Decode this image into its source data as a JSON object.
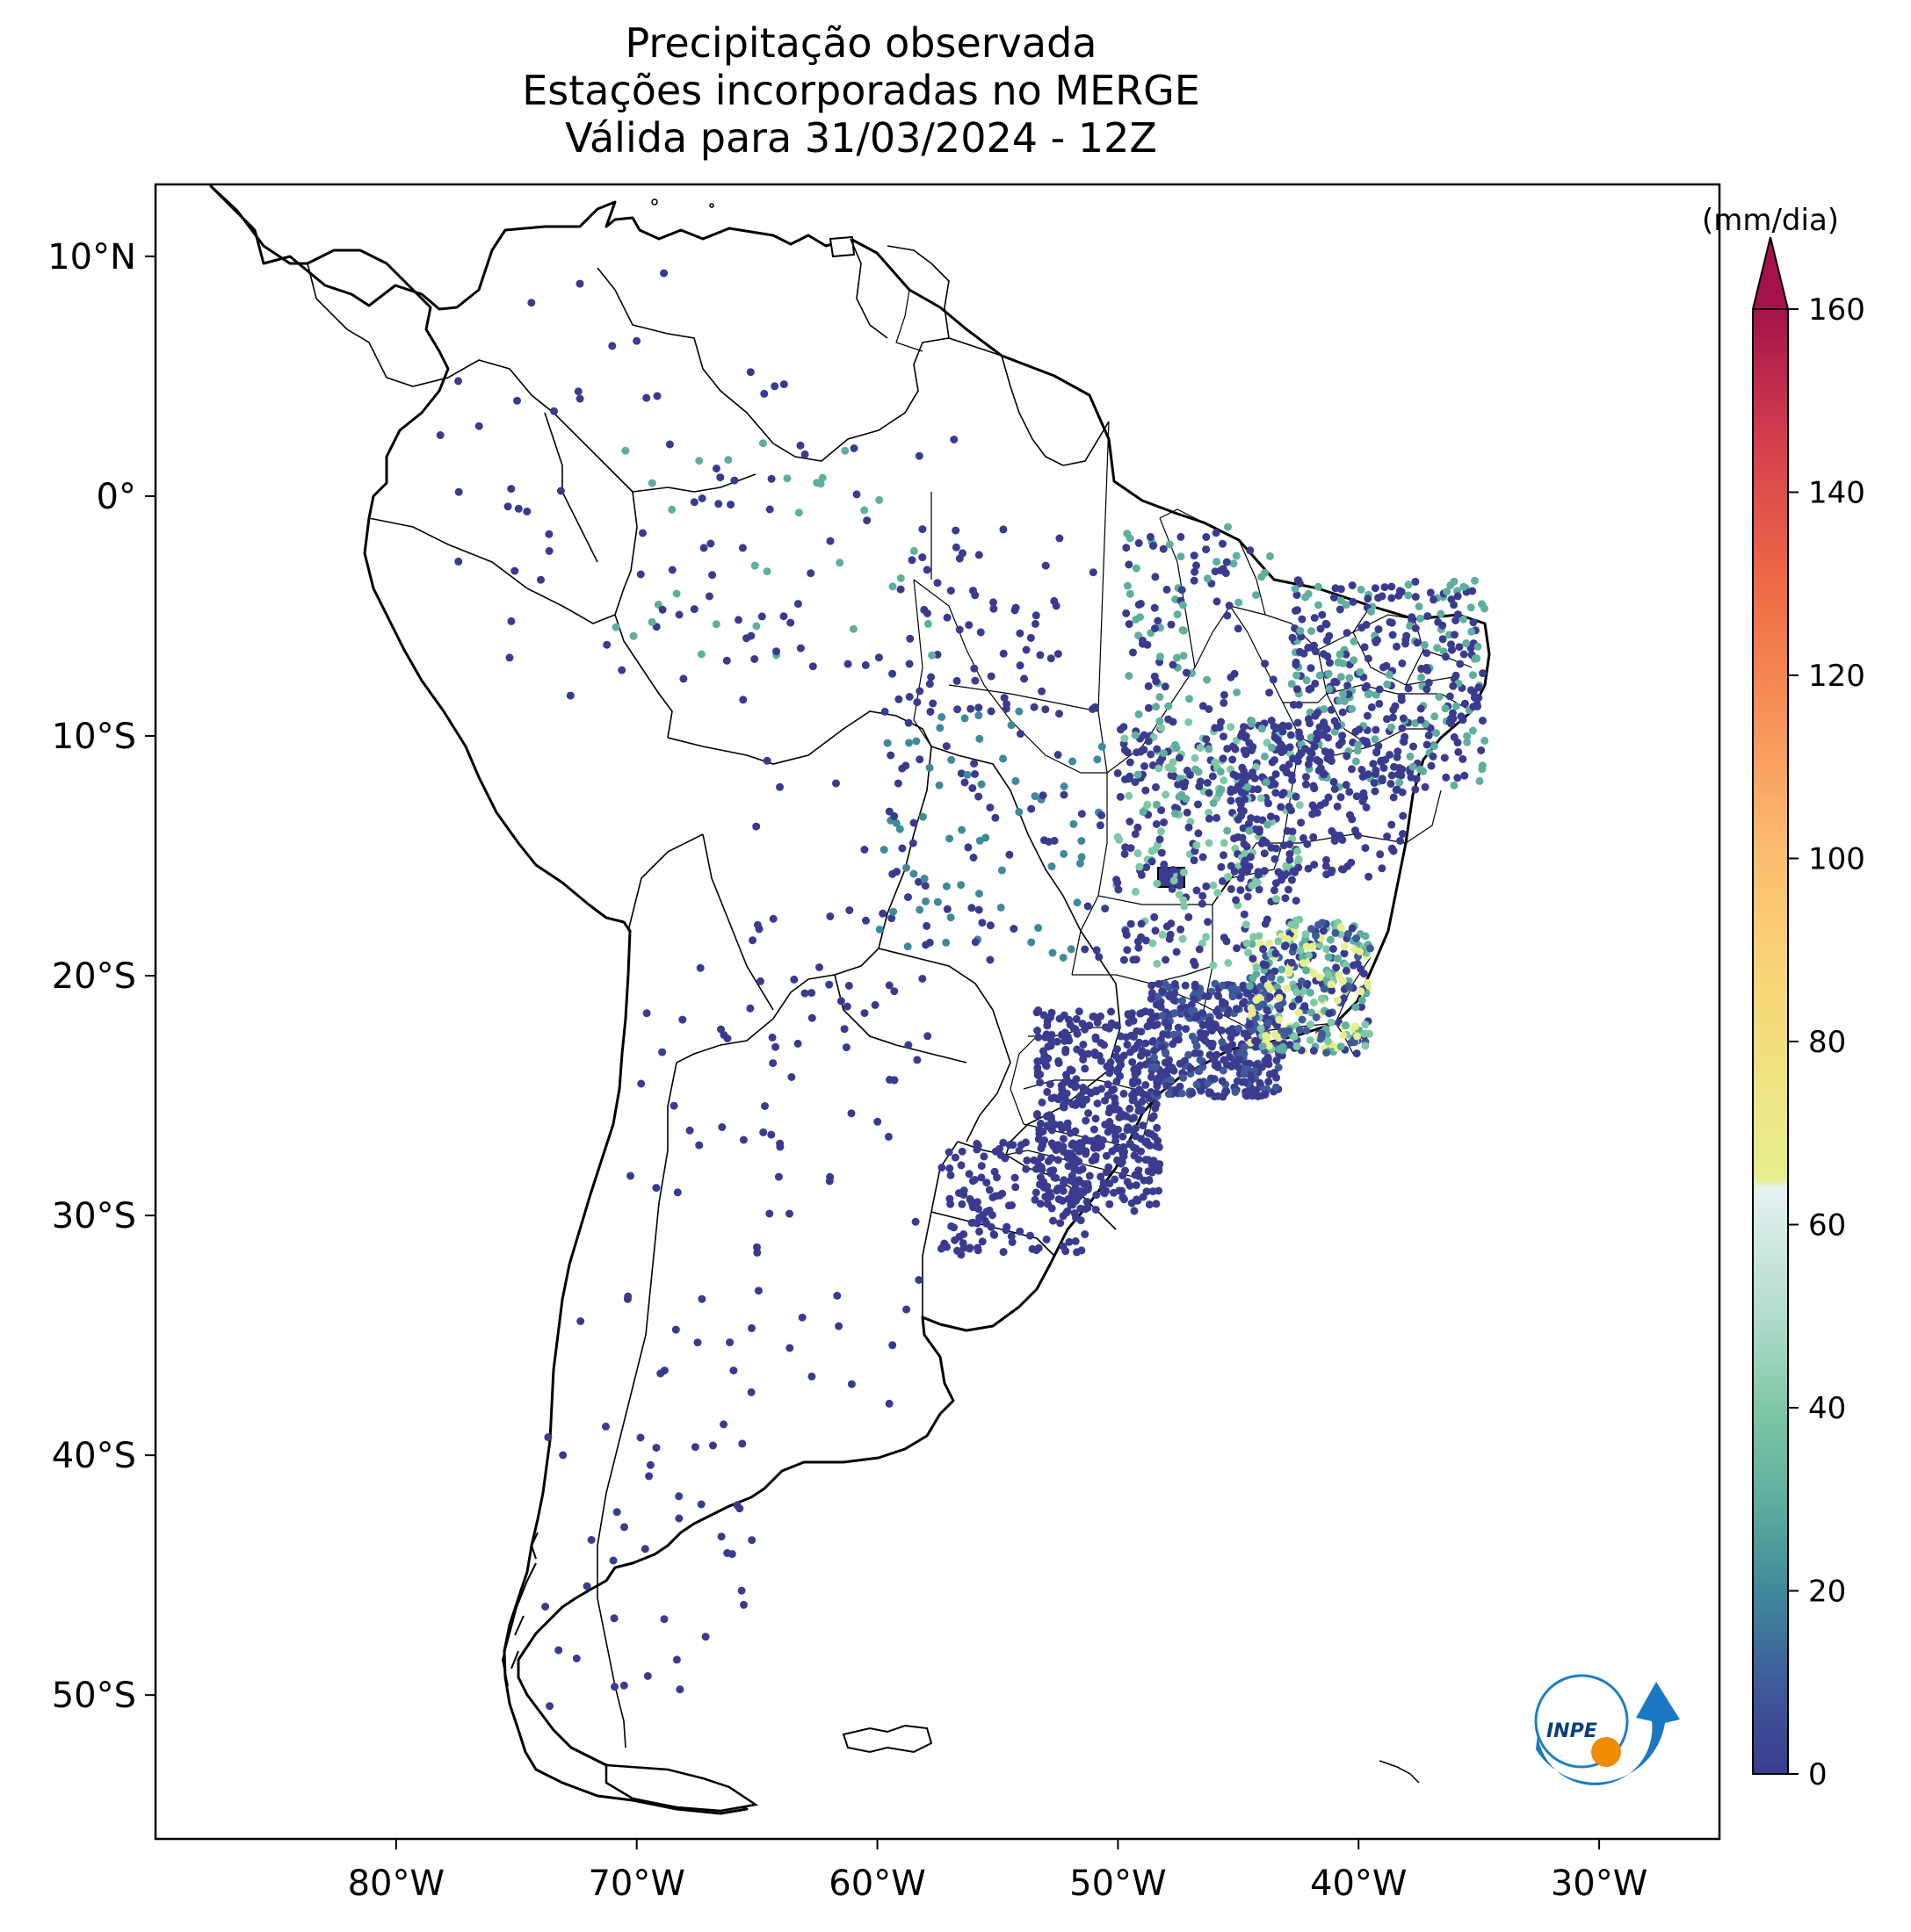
{
  "map": {
    "title_lines": [
      "Precipitação observada",
      "Estações incorporadas no MERGE",
      "Válida para 31/03/2024 - 12Z"
    ],
    "x_ticks": [
      {
        "label": "80°W",
        "lon": -80
      },
      {
        "label": "70°W",
        "lon": -70
      },
      {
        "label": "60°W",
        "lon": -60
      },
      {
        "label": "50°W",
        "lon": -50
      },
      {
        "label": "40°W",
        "lon": -40
      },
      {
        "label": "30°W",
        "lon": -30
      }
    ],
    "y_ticks": [
      {
        "label": "10°N",
        "lat": 10
      },
      {
        "label": "0°",
        "lat": 0
      },
      {
        "label": "10°S",
        "lat": -10
      },
      {
        "label": "20°S",
        "lat": -20
      },
      {
        "label": "30°S",
        "lat": -30
      },
      {
        "label": "40°S",
        "lat": -40
      },
      {
        "label": "50°S",
        "lat": -50
      }
    ],
    "extent": {
      "lon_min": -90,
      "lon_max": -25,
      "lat_min": -56,
      "lat_max": 13
    }
  },
  "colorbar": {
    "unit_label": "(mm/dia)",
    "ticks": [
      "0",
      "20",
      "40",
      "60",
      "80",
      "100",
      "120",
      "140",
      "160"
    ],
    "min": 0,
    "max": 160,
    "stops": [
      {
        "value": 0,
        "color": "#3a3b8e"
      },
      {
        "value": 10,
        "color": "#3f5a9a"
      },
      {
        "value": 20,
        "color": "#3f8a9a"
      },
      {
        "value": 30,
        "color": "#5fae9e"
      },
      {
        "value": 40,
        "color": "#7fc8a6"
      },
      {
        "value": 50,
        "color": "#b3dccd"
      },
      {
        "value": 64,
        "color": "#e6f2f2"
      },
      {
        "value": 65,
        "color": "#e6ef8e"
      },
      {
        "value": 85,
        "color": "#f7d978"
      },
      {
        "value": 100,
        "color": "#fdbf6f"
      },
      {
        "value": 115,
        "color": "#f8935a"
      },
      {
        "value": 130,
        "color": "#ee6a45"
      },
      {
        "value": 145,
        "color": "#d6404e"
      },
      {
        "value": 160,
        "color": "#a3124a"
      }
    ],
    "extend": "max"
  },
  "logo": {
    "text": "INPE"
  }
}
